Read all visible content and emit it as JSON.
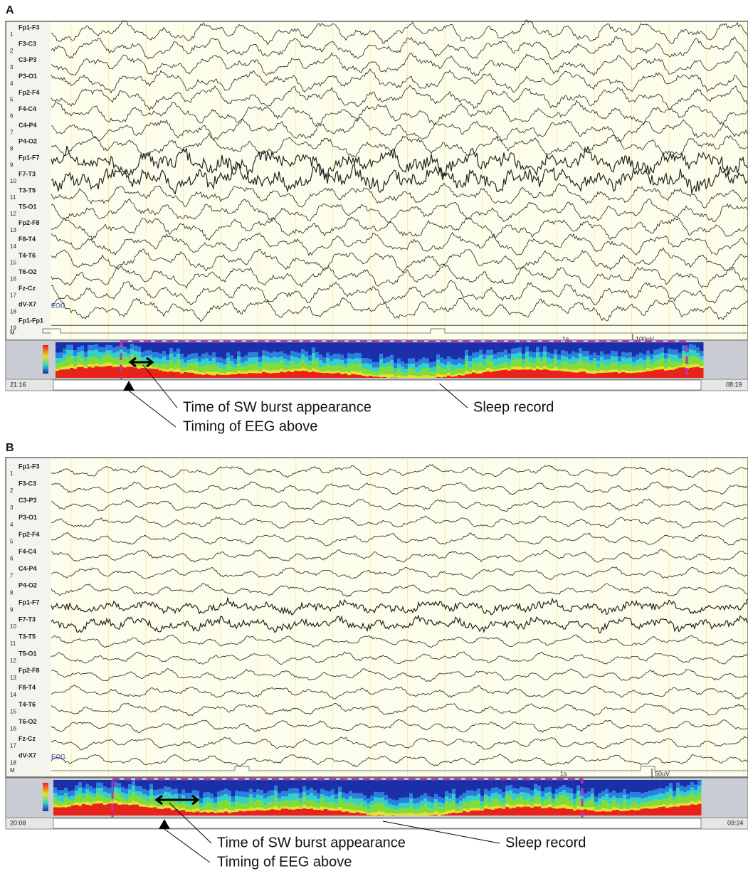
{
  "panels": [
    {
      "label": "A",
      "rows": [
        "1",
        "2",
        "3",
        "4",
        "5",
        "6",
        "7",
        "8",
        "9",
        "10",
        "11",
        "12",
        "13",
        "14",
        "15",
        "16",
        "17",
        "18",
        "19"
      ],
      "marker": "M",
      "channels": [
        "Fp1-F3",
        "F3-C3",
        "C3-P3",
        "P3-O1",
        "Fp2-F4",
        "F4-C4",
        "C4-P4",
        "P4-O2",
        "Fp1-F7",
        "F7-T3",
        "T3-T5",
        "T5-O1",
        "Fp2-F8",
        "F8-T4",
        "T4-T6",
        "T6-O2",
        "Fz-Cz",
        "dV-X7",
        "Fp1-Fp1"
      ],
      "eog": "EOG",
      "time_scale": "1s",
      "amp_scale": "100uV",
      "start_time": "21:16",
      "end_time": "08:19",
      "annotations": {
        "burst": "Time of SW burst appearance",
        "sleep": "Sleep record",
        "timing": "Timing of EEG above"
      }
    },
    {
      "label": "B",
      "rows": [
        "1",
        "2",
        "3",
        "4",
        "5",
        "6",
        "7",
        "8",
        "9",
        "10",
        "11",
        "12",
        "13",
        "14",
        "15",
        "16",
        "17",
        "18"
      ],
      "marker": "M",
      "channels": [
        "Fp1-F3",
        "F3-C3",
        "C3-P3",
        "P3-O1",
        "Fp2-F4",
        "F4-C4",
        "C4-P4",
        "P4-O2",
        "Fp1-F7",
        "F7-T3",
        "T3-T5",
        "T5-O1",
        "Fp2-F8",
        "F8-T4",
        "T4-T6",
        "T6-O2",
        "Fz-Cz",
        "dV-X7"
      ],
      "eog": "EOG",
      "time_scale": "1s",
      "amp_scale": "50uV",
      "start_time": "20:08",
      "end_time": "09:24",
      "annotations": {
        "burst": "Time of SW burst appearance",
        "sleep": "Sleep record",
        "timing": "Timing of EEG above"
      }
    }
  ]
}
